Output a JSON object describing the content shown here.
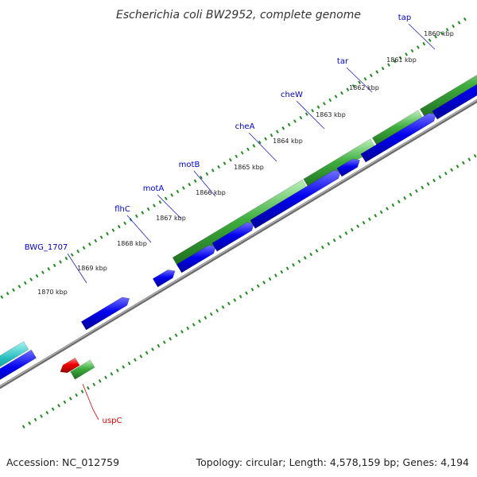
{
  "title": "Escherichia coli BW2952, complete genome",
  "footer": {
    "accession": "Accession: NC_012759",
    "summary": "Topology: circular; Length: 4,578,159 bp; Genes: 4,194"
  },
  "ticks": [
    "1860 kbp",
    "1861 kbp",
    "1862 kbp",
    "1863 kbp",
    "1864 kbp",
    "1865 kbp",
    "1866 kbp",
    "1867 kbp",
    "1868 kbp",
    "1869 kbp",
    "1870 kbp"
  ],
  "genes_forward": [
    "tap",
    "tar",
    "cheW",
    "cheA",
    "motB",
    "motA",
    "flhC",
    "BWG_1707"
  ],
  "genes_reverse": [
    "uspC"
  ],
  "colors": {
    "forward_label": "#0000cc",
    "reverse_label": "#ee0000",
    "cds_blue": "#0000ee",
    "gene_green": "#2e9a2e",
    "gene_cyan": "#22bbbb",
    "gene_red": "#ee0000",
    "tick_dots": "#1f8c1f",
    "backbone": "#888888"
  }
}
